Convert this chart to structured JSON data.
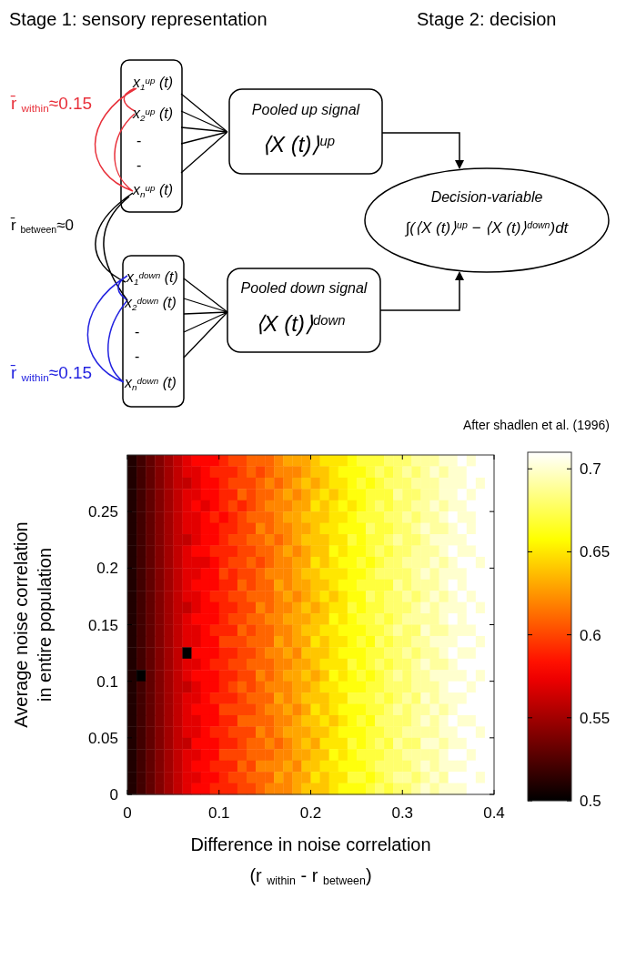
{
  "chart_data": [
    {
      "type": "other",
      "annotations": [
        "Stage 1: sensory representation",
        "Stage 2: decision",
        "r̄ $_{within}$≈0.15",
        "r̄ $_{between}$≈0",
        "r̄ $_{within}$≈0.15",
        "x$_{1}$$^{up}$ (t)",
        "x$_{2}$$^{up}$ (t)",
        "-",
        "-",
        "x$_{n}$$^{up}$ (t)",
        "x$_{1}$$^{down}$ (t)",
        "x$_{2}$$^{down}$ (t)",
        "-",
        "-",
        "x$_{n}$$^{down}$ (t)",
        "Pooled up signal",
        "⟨X (t)⟩$^{up}$",
        "Pooled down signal",
        "⟨X (t)⟩$^{down}$",
        "Decision-variable",
        "∫(⟨X (t)⟩$^{up}$ − ⟨X (t)⟩$^{down}$)dt",
        "After shadlen et al. (1996)"
      ]
    },
    {
      "type": "heatmap",
      "xlabel": "Difference in noise correlation\n(r $_{within}$ - r $_{between}$)",
      "ylabel": "Average noise correlation\nin entire population",
      "xlim": [
        0,
        0.4
      ],
      "xticks": [
        0,
        0.1,
        0.2,
        0.3,
        0.4
      ],
      "ylim": [
        0,
        0.3
      ],
      "yticks": [
        0,
        0.05,
        0.1,
        0.15,
        0.2,
        0.25
      ],
      "clim": [
        0.5,
        0.71
      ],
      "cticks": [
        0.5,
        0.55,
        0.6,
        0.65,
        0.7
      ],
      "cells": [
        [
          0.51,
          0.52,
          0.53,
          0.54,
          0.55,
          0.56,
          0.57,
          0.58,
          0.58,
          0.58,
          0.59,
          0.6,
          0.6,
          0.61,
          0.61,
          0.61,
          0.62,
          0.63,
          0.63,
          0.63,
          0.64,
          0.65,
          0.65,
          0.65,
          0.66,
          0.67,
          0.67,
          0.67,
          0.68,
          0.68,
          0.68,
          0.69,
          0.69,
          0.69,
          0.7,
          0.7,
          0.71,
          0.7,
          0.71,
          0.71
        ],
        [
          0.51,
          0.52,
          0.53,
          0.54,
          0.55,
          0.56,
          0.57,
          0.57,
          0.58,
          0.59,
          0.59,
          0.59,
          0.6,
          0.61,
          0.6,
          0.61,
          0.62,
          0.62,
          0.62,
          0.63,
          0.64,
          0.64,
          0.65,
          0.66,
          0.66,
          0.66,
          0.67,
          0.68,
          0.67,
          0.68,
          0.69,
          0.68,
          0.69,
          0.7,
          0.69,
          0.7,
          0.7,
          0.71,
          0.71,
          0.71
        ],
        [
          0.51,
          0.52,
          0.53,
          0.54,
          0.55,
          0.56,
          0.56,
          0.57,
          0.58,
          0.58,
          0.59,
          0.6,
          0.6,
          0.6,
          0.61,
          0.62,
          0.61,
          0.62,
          0.63,
          0.64,
          0.63,
          0.64,
          0.65,
          0.65,
          0.66,
          0.67,
          0.66,
          0.67,
          0.68,
          0.68,
          0.68,
          0.69,
          0.69,
          0.69,
          0.7,
          0.7,
          0.7,
          0.71,
          0.7,
          0.71
        ],
        [
          0.51,
          0.52,
          0.53,
          0.54,
          0.55,
          0.56,
          0.57,
          0.57,
          0.58,
          0.58,
          0.59,
          0.59,
          0.61,
          0.6,
          0.61,
          0.61,
          0.62,
          0.63,
          0.62,
          0.63,
          0.64,
          0.65,
          0.64,
          0.65,
          0.66,
          0.66,
          0.67,
          0.67,
          0.67,
          0.69,
          0.68,
          0.68,
          0.69,
          0.69,
          0.7,
          0.7,
          0.71,
          0.7,
          0.71,
          0.71
        ],
        [
          0.51,
          0.52,
          0.53,
          0.54,
          0.55,
          0.56,
          0.57,
          0.58,
          0.57,
          0.58,
          0.59,
          0.6,
          0.59,
          0.6,
          0.61,
          0.62,
          0.62,
          0.62,
          0.63,
          0.63,
          0.65,
          0.64,
          0.65,
          0.66,
          0.65,
          0.66,
          0.67,
          0.68,
          0.67,
          0.68,
          0.68,
          0.69,
          0.69,
          0.7,
          0.69,
          0.7,
          0.7,
          0.71,
          0.71,
          0.71
        ],
        [
          0.51,
          0.52,
          0.53,
          0.54,
          0.55,
          0.56,
          0.57,
          0.57,
          0.58,
          0.59,
          0.58,
          0.59,
          0.6,
          0.61,
          0.61,
          0.61,
          0.62,
          0.63,
          0.63,
          0.64,
          0.64,
          0.64,
          0.65,
          0.65,
          0.66,
          0.67,
          0.67,
          0.67,
          0.68,
          0.68,
          0.69,
          0.68,
          0.69,
          0.69,
          0.7,
          0.71,
          0.7,
          0.7,
          0.71,
          0.71
        ],
        [
          0.51,
          0.52,
          0.53,
          0.54,
          0.55,
          0.56,
          0.57,
          0.57,
          0.58,
          0.58,
          0.59,
          0.59,
          0.6,
          0.6,
          0.62,
          0.61,
          0.62,
          0.62,
          0.63,
          0.63,
          0.64,
          0.65,
          0.65,
          0.66,
          0.66,
          0.66,
          0.68,
          0.67,
          0.67,
          0.68,
          0.68,
          0.69,
          0.7,
          0.69,
          0.69,
          0.7,
          0.71,
          0.7,
          0.71,
          0.71
        ],
        [
          0.51,
          0.52,
          0.53,
          0.54,
          0.55,
          0.56,
          0.56,
          0.57,
          0.58,
          0.58,
          0.59,
          0.6,
          0.6,
          0.61,
          0.61,
          0.62,
          0.61,
          0.62,
          0.63,
          0.64,
          0.64,
          0.64,
          0.65,
          0.65,
          0.67,
          0.66,
          0.67,
          0.67,
          0.68,
          0.69,
          0.68,
          0.68,
          0.69,
          0.7,
          0.7,
          0.7,
          0.7,
          0.71,
          0.71,
          0.71
        ],
        [
          0.51,
          0.52,
          0.53,
          0.54,
          0.55,
          0.56,
          0.57,
          0.58,
          0.58,
          0.59,
          0.59,
          0.59,
          0.6,
          0.6,
          0.61,
          0.61,
          0.62,
          0.63,
          0.62,
          0.63,
          0.64,
          0.64,
          0.66,
          0.65,
          0.66,
          0.66,
          0.67,
          0.68,
          0.67,
          0.68,
          0.68,
          0.69,
          0.69,
          0.69,
          0.7,
          0.71,
          0.7,
          0.7,
          0.71,
          0.71
        ],
        [
          0.51,
          0.52,
          0.53,
          0.54,
          0.55,
          0.56,
          0.57,
          0.57,
          0.57,
          0.58,
          0.59,
          0.6,
          0.6,
          0.61,
          0.6,
          0.61,
          0.62,
          0.62,
          0.63,
          0.63,
          0.65,
          0.64,
          0.65,
          0.66,
          0.66,
          0.67,
          0.66,
          0.67,
          0.68,
          0.68,
          0.69,
          0.69,
          0.69,
          0.7,
          0.69,
          0.7,
          0.71,
          0.71,
          0.7,
          0.71
        ],
        [
          0.51,
          0.52,
          0.53,
          0.54,
          0.55,
          0.56,
          0.57,
          0.57,
          0.58,
          0.58,
          0.6,
          0.59,
          0.6,
          0.6,
          0.61,
          0.62,
          0.62,
          0.62,
          0.63,
          0.64,
          0.64,
          0.65,
          0.65,
          0.65,
          0.66,
          0.66,
          0.67,
          0.68,
          0.68,
          0.68,
          0.68,
          0.69,
          0.7,
          0.69,
          0.7,
          0.7,
          0.7,
          0.71,
          0.71,
          0.71
        ],
        [
          0.51,
          0.52,
          0.53,
          0.54,
          0.55,
          0.56,
          0.57,
          0.58,
          0.58,
          0.58,
          0.59,
          0.59,
          0.61,
          0.6,
          0.61,
          0.61,
          0.63,
          0.62,
          0.63,
          0.63,
          0.64,
          0.64,
          0.65,
          0.66,
          0.66,
          0.67,
          0.67,
          0.67,
          0.67,
          0.69,
          0.68,
          0.69,
          0.69,
          0.69,
          0.7,
          0.71,
          0.7,
          0.71,
          0.71,
          0.71
        ],
        [
          0.51,
          0.52,
          0.53,
          0.54,
          0.55,
          0.56,
          0.57,
          0.57,
          0.58,
          0.59,
          0.59,
          0.6,
          0.6,
          0.61,
          0.61,
          0.61,
          0.62,
          0.63,
          0.62,
          0.63,
          0.64,
          0.65,
          0.64,
          0.65,
          0.66,
          0.66,
          0.68,
          0.67,
          0.68,
          0.68,
          0.69,
          0.68,
          0.69,
          0.7,
          0.69,
          0.7,
          0.71,
          0.7,
          0.71,
          0.71
        ],
        [
          0.51,
          0.52,
          0.53,
          0.54,
          0.55,
          0.56,
          0.56,
          0.57,
          0.58,
          0.58,
          0.59,
          0.59,
          0.6,
          0.6,
          0.62,
          0.61,
          0.62,
          0.62,
          0.63,
          0.64,
          0.63,
          0.64,
          0.65,
          0.65,
          0.67,
          0.66,
          0.67,
          0.67,
          0.68,
          0.68,
          0.68,
          0.69,
          0.7,
          0.69,
          0.7,
          0.7,
          0.7,
          0.71,
          0.7,
          0.71
        ],
        [
          0.51,
          0.52,
          0.53,
          0.54,
          0.55,
          0.56,
          0.57,
          0.58,
          0.58,
          0.58,
          0.59,
          0.6,
          0.6,
          0.61,
          0.61,
          0.62,
          0.62,
          0.63,
          0.63,
          0.63,
          0.64,
          0.64,
          0.66,
          0.65,
          0.66,
          0.67,
          0.67,
          0.68,
          0.67,
          0.68,
          0.69,
          0.69,
          0.69,
          0.69,
          0.7,
          0.71,
          0.7,
          0.71,
          0.71,
          0.71
        ],
        [
          0.51,
          0.52,
          0.53,
          0.54,
          0.55,
          0.56,
          0.57,
          0.57,
          0.58,
          0.59,
          0.59,
          0.59,
          0.61,
          0.6,
          0.61,
          0.61,
          0.62,
          0.62,
          0.63,
          0.64,
          0.64,
          0.65,
          0.65,
          0.66,
          0.66,
          0.66,
          0.67,
          0.67,
          0.68,
          0.69,
          0.68,
          0.68,
          0.7,
          0.69,
          0.69,
          0.7,
          0.7,
          0.7,
          0.71,
          0.71
        ],
        [
          0.51,
          0.52,
          0.53,
          0.54,
          0.55,
          0.56,
          0.57,
          0.57,
          0.58,
          0.58,
          0.6,
          0.6,
          0.6,
          0.61,
          0.61,
          0.61,
          0.63,
          0.62,
          0.63,
          0.63,
          0.65,
          0.64,
          0.65,
          0.65,
          0.66,
          0.67,
          0.66,
          0.68,
          0.67,
          0.68,
          0.68,
          0.69,
          0.69,
          0.7,
          0.7,
          0.7,
          0.71,
          0.71,
          0.7,
          0.71
        ],
        [
          0.51,
          0.52,
          0.53,
          0.54,
          0.55,
          0.56,
          0.5,
          0.58,
          0.58,
          0.58,
          0.59,
          0.59,
          0.6,
          0.6,
          0.61,
          0.62,
          0.62,
          0.63,
          0.62,
          0.64,
          0.64,
          0.64,
          0.65,
          0.66,
          0.66,
          0.66,
          0.67,
          0.67,
          0.68,
          0.68,
          0.69,
          0.68,
          0.69,
          0.69,
          0.7,
          0.71,
          0.7,
          0.7,
          0.71,
          0.71
        ],
        [
          0.51,
          0.52,
          0.53,
          0.54,
          0.55,
          0.56,
          0.57,
          0.57,
          0.58,
          0.59,
          0.59,
          0.6,
          0.6,
          0.61,
          0.61,
          0.61,
          0.62,
          0.62,
          0.63,
          0.63,
          0.64,
          0.65,
          0.65,
          0.65,
          0.67,
          0.66,
          0.67,
          0.68,
          0.67,
          0.68,
          0.68,
          0.69,
          0.7,
          0.69,
          0.69,
          0.7,
          0.71,
          0.71,
          0.71,
          0.71
        ],
        [
          0.51,
          0.5,
          0.53,
          0.54,
          0.55,
          0.56,
          0.57,
          0.58,
          0.58,
          0.58,
          0.59,
          0.59,
          0.6,
          0.6,
          0.62,
          0.61,
          0.62,
          0.63,
          0.63,
          0.64,
          0.63,
          0.64,
          0.66,
          0.65,
          0.66,
          0.67,
          0.66,
          0.67,
          0.68,
          0.69,
          0.68,
          0.69,
          0.69,
          0.7,
          0.7,
          0.7,
          0.7,
          0.71,
          0.7,
          0.71
        ],
        [
          0.51,
          0.52,
          0.53,
          0.54,
          0.55,
          0.56,
          0.56,
          0.57,
          0.58,
          0.58,
          0.59,
          0.6,
          0.61,
          0.6,
          0.61,
          0.62,
          0.62,
          0.62,
          0.63,
          0.63,
          0.64,
          0.65,
          0.65,
          0.66,
          0.66,
          0.66,
          0.67,
          0.67,
          0.68,
          0.68,
          0.68,
          0.69,
          0.69,
          0.69,
          0.7,
          0.71,
          0.71,
          0.7,
          0.71,
          0.71
        ],
        [
          0.51,
          0.52,
          0.53,
          0.54,
          0.55,
          0.56,
          0.57,
          0.57,
          0.58,
          0.59,
          0.59,
          0.59,
          0.6,
          0.61,
          0.61,
          0.61,
          0.63,
          0.62,
          0.63,
          0.64,
          0.64,
          0.64,
          0.65,
          0.65,
          0.67,
          0.67,
          0.67,
          0.68,
          0.67,
          0.68,
          0.69,
          0.68,
          0.7,
          0.69,
          0.7,
          0.7,
          0.7,
          0.71,
          0.71,
          0.71
        ],
        [
          0.51,
          0.52,
          0.53,
          0.54,
          0.55,
          0.56,
          0.57,
          0.58,
          0.58,
          0.58,
          0.6,
          0.6,
          0.6,
          0.6,
          0.61,
          0.62,
          0.62,
          0.63,
          0.62,
          0.63,
          0.65,
          0.64,
          0.65,
          0.66,
          0.66,
          0.66,
          0.67,
          0.67,
          0.68,
          0.69,
          0.68,
          0.69,
          0.69,
          0.7,
          0.69,
          0.7,
          0.71,
          0.71,
          0.71,
          0.71
        ],
        [
          0.51,
          0.52,
          0.53,
          0.54,
          0.55,
          0.56,
          0.57,
          0.57,
          0.58,
          0.58,
          0.59,
          0.59,
          0.61,
          0.61,
          0.61,
          0.61,
          0.62,
          0.62,
          0.63,
          0.64,
          0.64,
          0.65,
          0.64,
          0.65,
          0.66,
          0.67,
          0.66,
          0.68,
          0.68,
          0.68,
          0.68,
          0.69,
          0.7,
          0.69,
          0.7,
          0.71,
          0.7,
          0.7,
          0.71,
          0.71
        ],
        [
          0.51,
          0.52,
          0.53,
          0.54,
          0.55,
          0.56,
          0.57,
          0.57,
          0.58,
          0.59,
          0.59,
          0.6,
          0.6,
          0.6,
          0.62,
          0.61,
          0.62,
          0.63,
          0.63,
          0.63,
          0.64,
          0.64,
          0.65,
          0.66,
          0.66,
          0.66,
          0.67,
          0.67,
          0.68,
          0.68,
          0.69,
          0.69,
          0.69,
          0.69,
          0.7,
          0.7,
          0.71,
          0.71,
          0.7,
          0.71
        ],
        [
          0.51,
          0.52,
          0.53,
          0.54,
          0.55,
          0.56,
          0.56,
          0.58,
          0.58,
          0.58,
          0.59,
          0.59,
          0.6,
          0.61,
          0.61,
          0.62,
          0.61,
          0.62,
          0.63,
          0.64,
          0.63,
          0.65,
          0.65,
          0.65,
          0.67,
          0.66,
          0.67,
          0.68,
          0.67,
          0.69,
          0.68,
          0.68,
          0.7,
          0.7,
          0.69,
          0.7,
          0.7,
          0.71,
          0.71,
          0.71
        ],
        [
          0.51,
          0.52,
          0.53,
          0.54,
          0.55,
          0.56,
          0.57,
          0.57,
          0.58,
          0.58,
          0.6,
          0.6,
          0.6,
          0.61,
          0.61,
          0.61,
          0.62,
          0.62,
          0.63,
          0.63,
          0.64,
          0.64,
          0.66,
          0.65,
          0.66,
          0.67,
          0.67,
          0.67,
          0.68,
          0.68,
          0.69,
          0.69,
          0.69,
          0.69,
          0.7,
          0.71,
          0.71,
          0.7,
          0.71,
          0.71
        ],
        [
          0.51,
          0.52,
          0.53,
          0.54,
          0.55,
          0.56,
          0.57,
          0.58,
          0.58,
          0.59,
          0.59,
          0.59,
          0.61,
          0.6,
          0.62,
          0.62,
          0.62,
          0.63,
          0.62,
          0.64,
          0.64,
          0.65,
          0.65,
          0.66,
          0.66,
          0.66,
          0.67,
          0.68,
          0.68,
          0.68,
          0.68,
          0.69,
          0.7,
          0.69,
          0.7,
          0.7,
          0.7,
          0.71,
          0.71,
          0.71
        ],
        [
          0.51,
          0.52,
          0.53,
          0.54,
          0.55,
          0.56,
          0.57,
          0.57,
          0.58,
          0.58,
          0.59,
          0.6,
          0.6,
          0.61,
          0.61,
          0.61,
          0.63,
          0.62,
          0.63,
          0.63,
          0.65,
          0.64,
          0.65,
          0.65,
          0.67,
          0.67,
          0.66,
          0.67,
          0.68,
          0.69,
          0.69,
          0.68,
          0.69,
          0.7,
          0.69,
          0.71,
          0.71,
          0.71,
          0.7,
          0.71
        ],
        [
          0.51,
          0.52,
          0.53,
          0.54,
          0.55,
          0.56,
          0.57,
          0.58,
          0.58,
          0.59,
          0.59,
          0.59,
          0.6,
          0.6,
          0.61,
          0.62,
          0.62,
          0.62,
          0.63,
          0.64,
          0.64,
          0.64,
          0.65,
          0.66,
          0.66,
          0.66,
          0.67,
          0.68,
          0.67,
          0.68,
          0.68,
          0.69,
          0.7,
          0.69,
          0.7,
          0.7,
          0.7,
          0.71,
          0.71,
          0.71
        ]
      ]
    }
  ]
}
